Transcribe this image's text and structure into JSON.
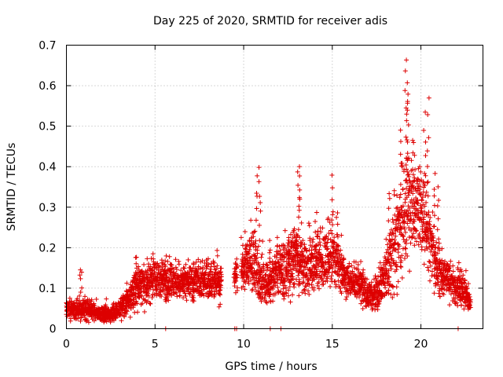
{
  "chart_data": {
    "type": "scatter",
    "title": "Day 225 of 2020, SRMTID for receiver adis",
    "xlabel": "GPS time / hours",
    "ylabel": "SRMTID / TECUs",
    "xlim": [
      0,
      23.5
    ],
    "ylim": [
      0,
      0.7
    ],
    "x_ticks": [
      0,
      5,
      10,
      15,
      20
    ],
    "y_ticks": [
      0,
      0.1,
      0.2,
      0.3,
      0.4,
      0.5,
      0.6,
      0.7
    ],
    "x_tick_labels": [
      "0",
      "5",
      "10",
      "15",
      "20"
    ],
    "y_tick_labels": [
      "0",
      "0.1",
      "0.2",
      "0.3",
      "0.4",
      "0.5",
      "0.6",
      "0.7"
    ],
    "grid": true,
    "marker": "plus",
    "series": [
      {
        "name": "SRMTID",
        "color": "#dd0000",
        "trend_profile": {
          "x": [
            0,
            0.5,
            1.0,
            1.5,
            2.0,
            2.5,
            3.0,
            3.5,
            4.0,
            4.5,
            5.0,
            5.5,
            6.0,
            6.5,
            7.0,
            7.5,
            8.0,
            8.7,
            9.6,
            10.0,
            10.5,
            11.0,
            11.5,
            12.0,
            12.5,
            13.0,
            13.5,
            14.0,
            14.5,
            15.0,
            15.5,
            16.0,
            16.5,
            17.0,
            17.5,
            18.0,
            18.5,
            19.0,
            19.5,
            20.0,
            20.5,
            21.0,
            21.5,
            22.0,
            22.5,
            22.8
          ],
          "y": [
            0.05,
            0.045,
            0.05,
            0.045,
            0.035,
            0.035,
            0.045,
            0.07,
            0.1,
            0.11,
            0.12,
            0.115,
            0.115,
            0.11,
            0.12,
            0.12,
            0.12,
            0.11,
            0.14,
            0.16,
            0.17,
            0.12,
            0.11,
            0.15,
            0.14,
            0.17,
            0.15,
            0.16,
            0.17,
            0.18,
            0.14,
            0.12,
            0.11,
            0.08,
            0.09,
            0.13,
            0.2,
            0.28,
            0.32,
            0.3,
            0.22,
            0.14,
            0.13,
            0.1,
            0.09,
            0.06
          ],
          "spread": [
            0.015,
            0.015,
            0.02,
            0.015,
            0.012,
            0.012,
            0.015,
            0.025,
            0.035,
            0.035,
            0.035,
            0.035,
            0.03,
            0.03,
            0.03,
            0.03,
            0.03,
            0.03,
            0.03,
            0.045,
            0.06,
            0.04,
            0.03,
            0.045,
            0.05,
            0.055,
            0.05,
            0.045,
            0.05,
            0.06,
            0.035,
            0.03,
            0.03,
            0.025,
            0.03,
            0.04,
            0.07,
            0.1,
            0.09,
            0.08,
            0.06,
            0.04,
            0.035,
            0.03,
            0.025,
            0.015
          ]
        },
        "peaks": [
          {
            "x": 0.8,
            "y": 0.15
          },
          {
            "x": 3.9,
            "y": 0.18
          },
          {
            "x": 5.6,
            "y": 0.18
          },
          {
            "x": 10.9,
            "y": 0.39
          },
          {
            "x": 10.7,
            "y": 0.37
          },
          {
            "x": 11.5,
            "y": 0.21
          },
          {
            "x": 12.6,
            "y": 0.23
          },
          {
            "x": 13.2,
            "y": 0.4
          },
          {
            "x": 13.1,
            "y": 0.38
          },
          {
            "x": 14.1,
            "y": 0.26
          },
          {
            "x": 15.0,
            "y": 0.37
          },
          {
            "x": 15.3,
            "y": 0.29
          },
          {
            "x": 18.2,
            "y": 0.34
          },
          {
            "x": 18.9,
            "y": 0.5
          },
          {
            "x": 19.2,
            "y": 0.66
          },
          {
            "x": 19.15,
            "y": 0.64
          },
          {
            "x": 19.3,
            "y": 0.58
          },
          {
            "x": 19.6,
            "y": 0.46
          },
          {
            "x": 20.4,
            "y": 0.56
          },
          {
            "x": 20.2,
            "y": 0.53
          },
          {
            "x": 20.8,
            "y": 0.38
          },
          {
            "x": 21.0,
            "y": 0.35
          }
        ],
        "zero_points_x": [
          5.6,
          9.5,
          9.6,
          11.5,
          12.1,
          22.1
        ],
        "gaps": [
          [
            8.75,
            9.45
          ],
          [
            9.65,
            9.85
          ]
        ]
      }
    ]
  }
}
